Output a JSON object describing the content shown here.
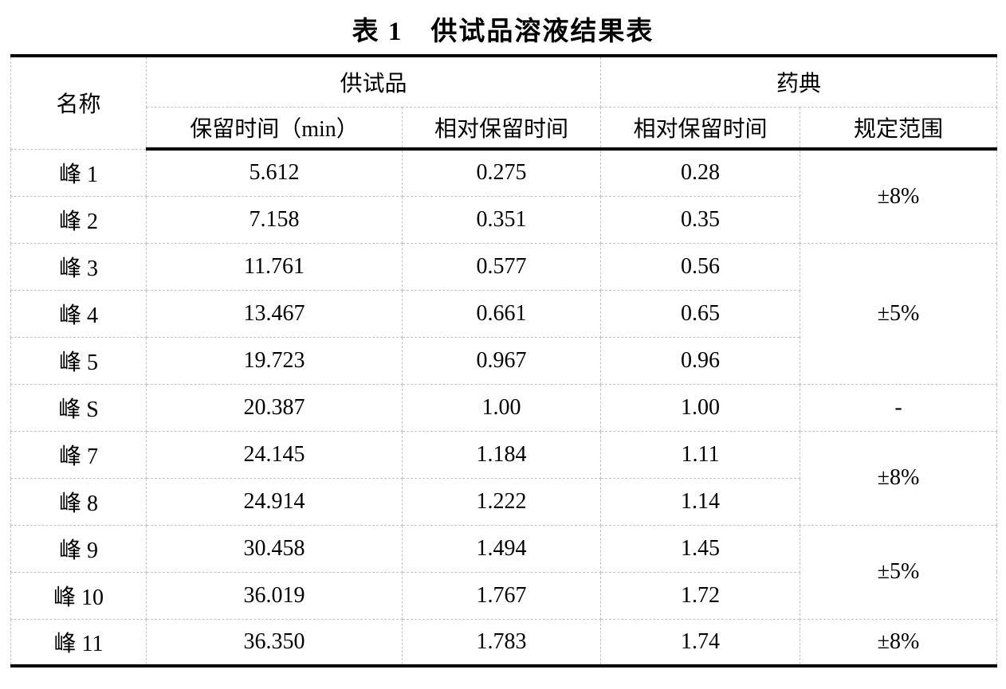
{
  "title": "表 1　供试品溶液结果表",
  "colors": {
    "background": "#ffffff",
    "text": "#000000",
    "strong_rule": "#000000",
    "light_dashed_rule": "#c3c3c3"
  },
  "table": {
    "header": {
      "name": "名称",
      "group_sample": "供试品",
      "group_pharmacopoeia": "药典",
      "retention_time": "保留时间（min）",
      "relative_retention_time_sample": "相对保留时间",
      "relative_retention_time_pharmacopoeia": "相对保留时间",
      "specified_range": "规定范围"
    },
    "rows": [
      {
        "name": "峰 1",
        "retention_time": "5.612",
        "relative_retention_time": "0.275",
        "pharmacopoeia_rrt": "0.28",
        "specified_range": "±8%",
        "range_rowspan": 2
      },
      {
        "name": "峰 2",
        "retention_time": "7.158",
        "relative_retention_time": "0.351",
        "pharmacopoeia_rrt": "0.35"
      },
      {
        "name": "峰 3",
        "retention_time": "11.761",
        "relative_retention_time": "0.577",
        "pharmacopoeia_rrt": "0.56",
        "specified_range": "±5%",
        "range_rowspan": 3
      },
      {
        "name": "峰 4",
        "retention_time": "13.467",
        "relative_retention_time": "0.661",
        "pharmacopoeia_rrt": "0.65"
      },
      {
        "name": "峰 5",
        "retention_time": "19.723",
        "relative_retention_time": "0.967",
        "pharmacopoeia_rrt": "0.96"
      },
      {
        "name": "峰 S",
        "retention_time": "20.387",
        "relative_retention_time": "1.00",
        "pharmacopoeia_rrt": "1.00",
        "specified_range": "-",
        "range_rowspan": 1
      },
      {
        "name": "峰 7",
        "retention_time": "24.145",
        "relative_retention_time": "1.184",
        "pharmacopoeia_rrt": "1.11",
        "specified_range": "±8%",
        "range_rowspan": 2
      },
      {
        "name": "峰 8",
        "retention_time": "24.914",
        "relative_retention_time": "1.222",
        "pharmacopoeia_rrt": "1.14"
      },
      {
        "name": "峰 9",
        "retention_time": "30.458",
        "relative_retention_time": "1.494",
        "pharmacopoeia_rrt": "1.45",
        "specified_range": "±5%",
        "range_rowspan": 2
      },
      {
        "name": "峰 10",
        "retention_time": "36.019",
        "relative_retention_time": "1.767",
        "pharmacopoeia_rrt": "1.72"
      },
      {
        "name": "峰 11",
        "retention_time": "36.350",
        "relative_retention_time": "1.783",
        "pharmacopoeia_rrt": "1.74",
        "specified_range": "±8%",
        "range_rowspan": 1
      }
    ]
  }
}
